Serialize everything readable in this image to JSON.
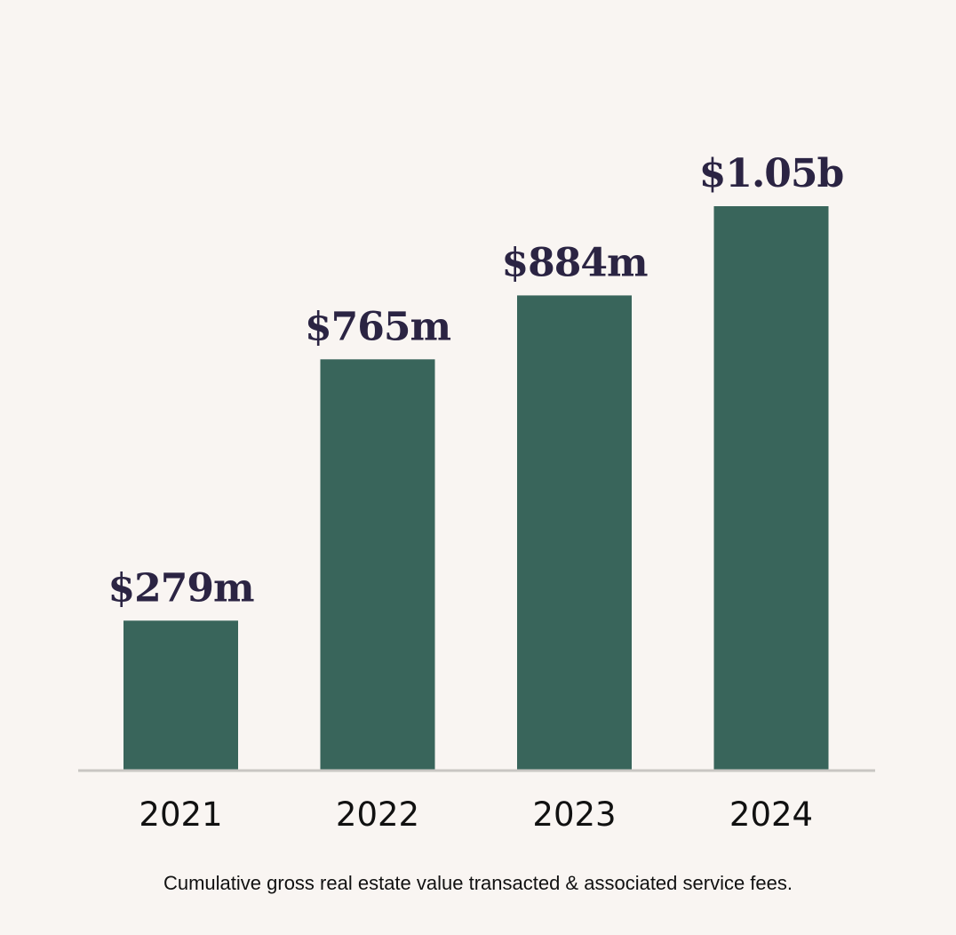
{
  "colors": {
    "background": "#f9f5f2",
    "bar": "#39655b",
    "value_label": "#2b2443",
    "tick_label": "#111111",
    "baseline": "#c9c6c3"
  },
  "chart_data": {
    "type": "bar",
    "categories": [
      "2021",
      "2022",
      "2023",
      "2024"
    ],
    "values": [
      279,
      765,
      884,
      1050
    ],
    "value_unit": "$ millions",
    "data_labels": [
      "$279m",
      "$765m",
      "$884m",
      "$1.05b"
    ],
    "ylim": [
      0,
      1150
    ],
    "grid": false,
    "legend": "none"
  },
  "caption": "Cumulative gross real estate value transacted & associated service fees."
}
